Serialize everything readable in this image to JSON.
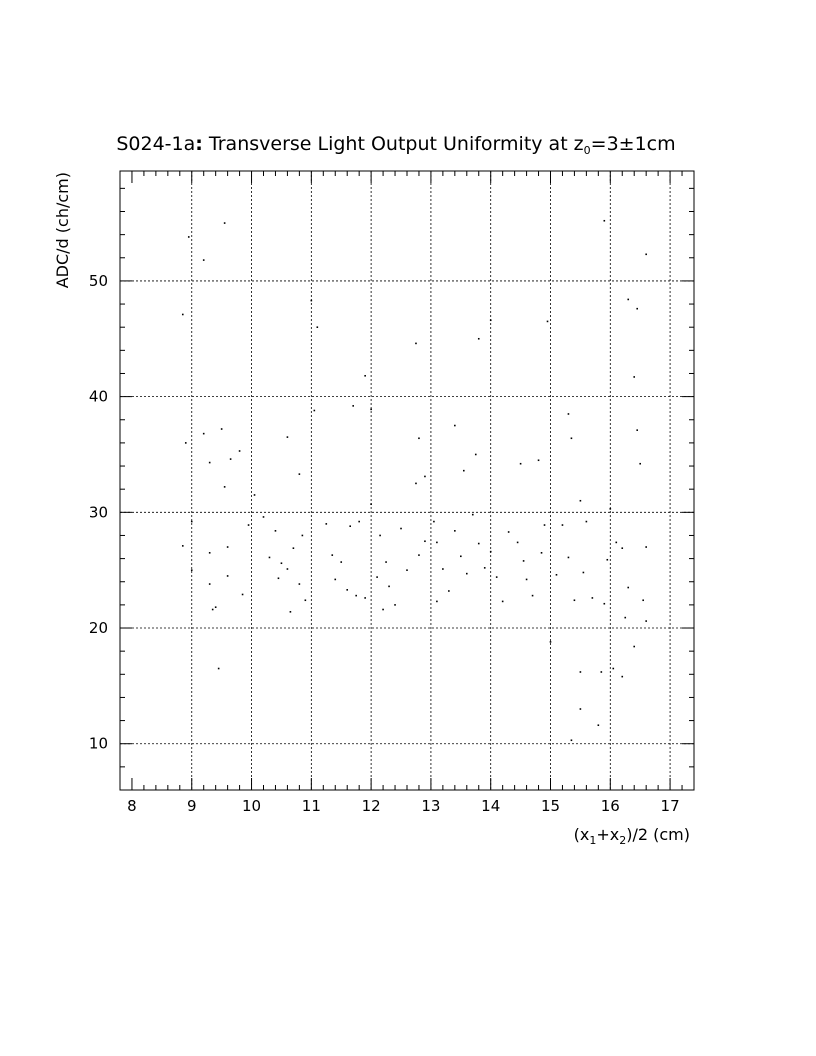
{
  "chart_data": {
    "type": "scatter",
    "title": {
      "prefix": "S024-1a",
      "colon": ":",
      "main": " Transverse Light Output Uniformity at z",
      "sub": "0",
      "suffix": "=3±1cm"
    },
    "xlabel": {
      "p1": "(x",
      "s1": "1",
      "p2": "+x",
      "s2": "2",
      "p3": ")/2 (cm)"
    },
    "ylabel": "ADC/d (ch/cm)",
    "xlim": [
      7.8,
      17.4
    ],
    "ylim": [
      6,
      59.5
    ],
    "grid": true,
    "x_ticks": [
      8,
      9,
      10,
      11,
      12,
      13,
      14,
      15,
      16,
      17
    ],
    "x_tick_labels": [
      "8",
      "9",
      "10",
      "11",
      "12",
      "13",
      "14",
      "15",
      "16",
      "17"
    ],
    "y_ticks": [
      10,
      20,
      30,
      40,
      50
    ],
    "y_tick_labels": [
      "10",
      "20",
      "30",
      "40",
      "50"
    ],
    "points": [
      [
        8.85,
        47.1
      ],
      [
        8.95,
        53.8
      ],
      [
        9.2,
        51.8
      ],
      [
        9.55,
        55.0
      ],
      [
        8.9,
        36.0
      ],
      [
        9.2,
        36.8
      ],
      [
        9.5,
        37.2
      ],
      [
        9.3,
        34.3
      ],
      [
        9.65,
        34.6
      ],
      [
        9.8,
        35.3
      ],
      [
        9.55,
        32.2
      ],
      [
        9.0,
        29.2
      ],
      [
        8.85,
        27.1
      ],
      [
        9.0,
        25.0
      ],
      [
        9.3,
        26.5
      ],
      [
        9.6,
        27.0
      ],
      [
        9.3,
        23.8
      ],
      [
        9.6,
        24.5
      ],
      [
        9.4,
        21.8
      ],
      [
        9.35,
        21.6
      ],
      [
        9.45,
        16.5
      ],
      [
        9.85,
        22.9
      ],
      [
        10.05,
        31.5
      ],
      [
        9.95,
        28.9
      ],
      [
        10.2,
        29.6
      ],
      [
        10.4,
        28.4
      ],
      [
        10.3,
        26.1
      ],
      [
        10.5,
        25.6
      ],
      [
        10.45,
        24.3
      ],
      [
        10.6,
        25.1
      ],
      [
        10.7,
        26.9
      ],
      [
        10.85,
        28.0
      ],
      [
        10.8,
        23.8
      ],
      [
        10.65,
        21.4
      ],
      [
        10.9,
        22.4
      ],
      [
        10.6,
        36.5
      ],
      [
        10.8,
        33.3
      ],
      [
        11.05,
        38.8
      ],
      [
        11.0,
        48.3
      ],
      [
        11.1,
        46.0
      ],
      [
        11.25,
        29.0
      ],
      [
        11.35,
        26.3
      ],
      [
        11.5,
        25.7
      ],
      [
        11.4,
        24.2
      ],
      [
        11.6,
        23.3
      ],
      [
        11.75,
        22.8
      ],
      [
        11.9,
        22.6
      ],
      [
        11.65,
        28.8
      ],
      [
        11.8,
        29.2
      ],
      [
        12.0,
        30.7
      ],
      [
        11.7,
        39.2
      ],
      [
        11.9,
        41.8
      ],
      [
        12.0,
        38.9
      ],
      [
        12.15,
        28.0
      ],
      [
        12.25,
        25.7
      ],
      [
        12.1,
        24.4
      ],
      [
        12.3,
        23.6
      ],
      [
        12.2,
        21.6
      ],
      [
        12.4,
        22.0
      ],
      [
        12.5,
        28.6
      ],
      [
        12.6,
        25.0
      ],
      [
        12.8,
        26.3
      ],
      [
        12.9,
        27.5
      ],
      [
        12.75,
        32.5
      ],
      [
        12.9,
        33.1
      ],
      [
        12.75,
        44.6
      ],
      [
        12.8,
        36.4
      ],
      [
        13.05,
        29.2
      ],
      [
        13.1,
        27.4
      ],
      [
        13.2,
        25.1
      ],
      [
        13.1,
        22.3
      ],
      [
        13.3,
        23.2
      ],
      [
        13.4,
        28.4
      ],
      [
        13.5,
        26.2
      ],
      [
        13.6,
        24.7
      ],
      [
        13.7,
        29.8
      ],
      [
        13.8,
        27.3
      ],
      [
        13.4,
        37.5
      ],
      [
        13.55,
        33.6
      ],
      [
        13.75,
        35.0
      ],
      [
        13.8,
        45.0
      ],
      [
        14.0,
        46.6
      ],
      [
        13.9,
        25.2
      ],
      [
        14.0,
        26.6
      ],
      [
        14.1,
        24.4
      ],
      [
        14.2,
        22.3
      ],
      [
        14.3,
        28.3
      ],
      [
        14.45,
        27.4
      ],
      [
        14.55,
        25.8
      ],
      [
        14.6,
        24.2
      ],
      [
        14.5,
        34.2
      ],
      [
        14.8,
        34.5
      ],
      [
        14.7,
        22.8
      ],
      [
        14.85,
        26.5
      ],
      [
        14.9,
        28.9
      ],
      [
        14.95,
        46.5
      ],
      [
        15.0,
        18.8
      ],
      [
        15.1,
        24.6
      ],
      [
        15.2,
        28.9
      ],
      [
        15.3,
        26.1
      ],
      [
        15.4,
        22.4
      ],
      [
        15.3,
        38.5
      ],
      [
        15.35,
        36.4
      ],
      [
        15.5,
        31.0
      ],
      [
        15.6,
        29.2
      ],
      [
        15.55,
        24.8
      ],
      [
        15.7,
        22.6
      ],
      [
        15.5,
        16.2
      ],
      [
        15.5,
        13.0
      ],
      [
        15.35,
        10.3
      ],
      [
        15.8,
        11.6
      ],
      [
        15.85,
        16.2
      ],
      [
        15.9,
        22.1
      ],
      [
        15.95,
        25.9
      ],
      [
        15.9,
        55.2
      ],
      [
        16.0,
        30.3
      ],
      [
        16.1,
        27.4
      ],
      [
        16.2,
        26.9
      ],
      [
        16.25,
        20.9
      ],
      [
        16.3,
        23.5
      ],
      [
        16.2,
        15.8
      ],
      [
        16.4,
        18.4
      ],
      [
        16.3,
        48.4
      ],
      [
        16.45,
        47.6
      ],
      [
        16.6,
        52.3
      ],
      [
        16.4,
        41.7
      ],
      [
        16.45,
        37.1
      ],
      [
        16.5,
        34.2
      ],
      [
        16.55,
        22.4
      ],
      [
        16.6,
        27.0
      ],
      [
        16.6,
        20.6
      ],
      [
        16.05,
        16.5
      ]
    ]
  }
}
